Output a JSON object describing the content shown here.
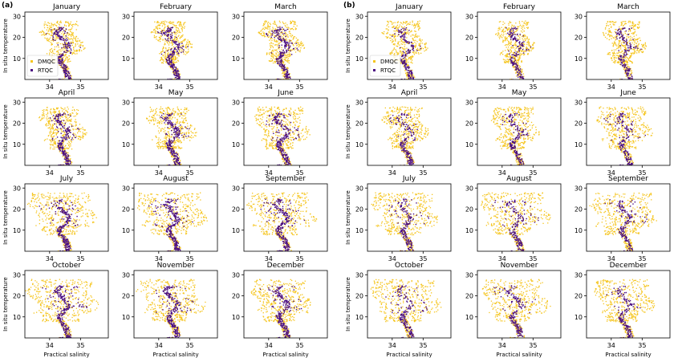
{
  "colors": {
    "dmqc": "#f5c51e",
    "rtqc": "#4b0f82",
    "axis": "#000000"
  },
  "chart_data": {
    "type": "scatter",
    "panel_labels": [
      "(a)",
      "(b)"
    ],
    "months": [
      "January",
      "February",
      "March",
      "April",
      "May",
      "June",
      "July",
      "August",
      "September",
      "October",
      "November",
      "December"
    ],
    "xlabel": "Practical salinity",
    "ylabel": "In situ temperature",
    "xlim": [
      33.2,
      35.9
    ],
    "ylim": [
      0,
      32
    ],
    "xticks": [
      34,
      35
    ],
    "yticks": [
      10,
      20,
      30
    ],
    "legend": {
      "placement": "lower-left",
      "entries": [
        "DMQC",
        "RTQC"
      ]
    },
    "grid": false,
    "series": [
      {
        "name": "RTQC",
        "description_points": [
          [
            34.6,
            0.5
          ],
          [
            34.55,
            3
          ],
          [
            34.5,
            5.5
          ],
          [
            34.35,
            8
          ],
          [
            34.3,
            10.5
          ],
          [
            34.45,
            13
          ],
          [
            34.6,
            15
          ],
          [
            34.55,
            17.5
          ],
          [
            34.35,
            20
          ],
          [
            34.2,
            22.5
          ],
          [
            34.35,
            24.5
          ]
        ]
      },
      {
        "name": "DMQC",
        "description_points": [
          [
            33.9,
            14
          ],
          [
            34.1,
            18
          ],
          [
            33.8,
            21
          ],
          [
            34.3,
            23
          ],
          [
            34.9,
            20
          ],
          [
            35.1,
            16
          ],
          [
            34.7,
            12
          ],
          [
            33.7,
            17
          ],
          [
            34.0,
            25
          ],
          [
            34.6,
            24
          ]
        ]
      }
    ]
  }
}
